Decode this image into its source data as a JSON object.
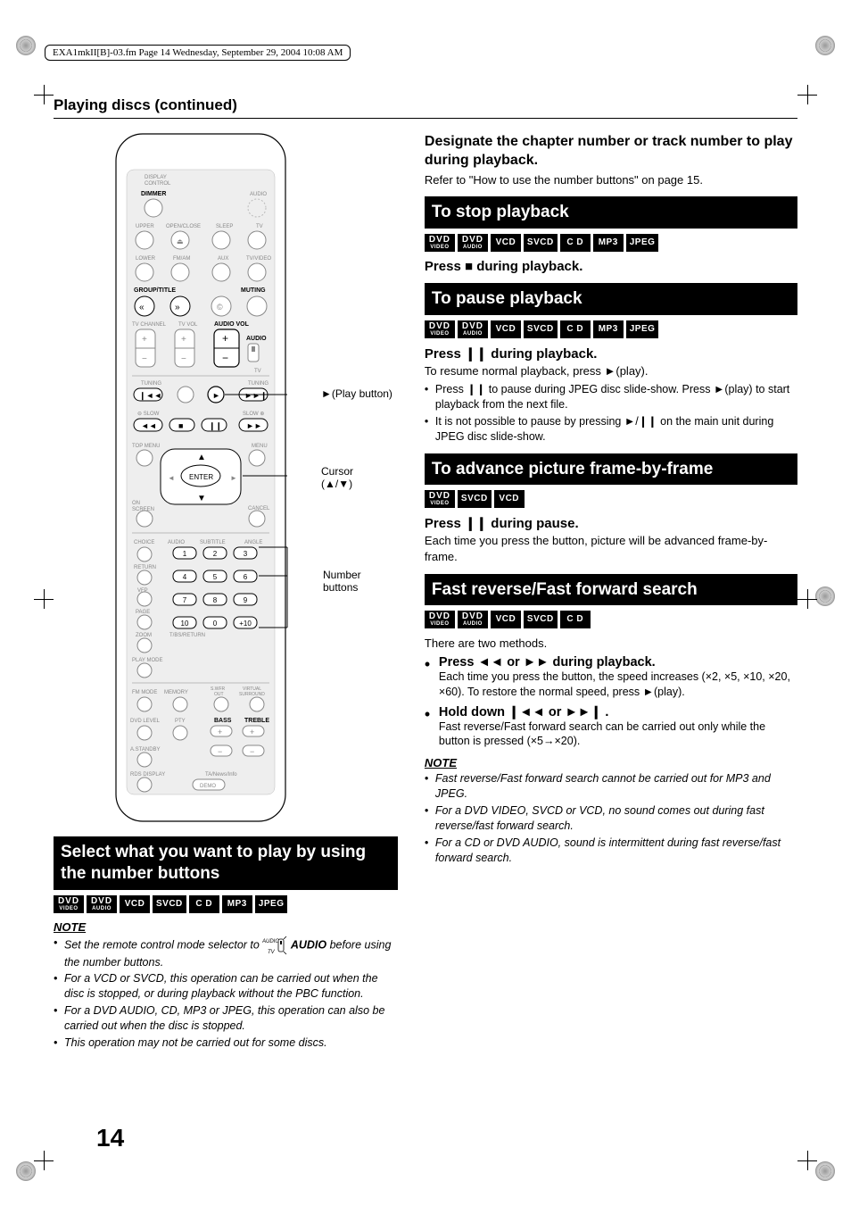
{
  "meta": {
    "fm_header": "EXA1mkII[B]-03.fm  Page 14  Wednesday, September 29, 2004  10:08 AM",
    "page_number": "14"
  },
  "section_title": "Playing discs (continued)",
  "remote": {
    "callout_play": "(Play button)",
    "callout_play_symbol": "►",
    "callout_cursor_l1": "Cursor",
    "callout_cursor_l2": "(▲/▼)",
    "callout_numbers_l1": "Number",
    "callout_numbers_l2": "buttons",
    "labels": {
      "display": "DISPLAY",
      "control": "CONTROL",
      "dimmer": "DIMMER",
      "audio_top": "AUDIO",
      "upper": "UPPER",
      "openclose": "OPEN/CLOSE",
      "sleep": "SLEEP",
      "tv": "TV",
      "lower": "LOWER",
      "fmam": "FM/AM",
      "aux": "AUX",
      "tvvideo": "TV/VIDEO",
      "grouptitle": "GROUP/TITLE",
      "muting": "MUTING",
      "tvchannel": "TV CHANNEL",
      "tvvol": "TV VOL",
      "audiovol": "AUDIO VOL",
      "audio": "AUDIO",
      "tv2": "TV",
      "tuning_l": "TUNING",
      "tuning_r": "TUNING",
      "slow_l": "SLOW",
      "slow_r": "SLOW",
      "topmenu": "TOP MENU",
      "menu": "MENU",
      "enter": "ENTER",
      "onscreen": "ON\nSCREEN",
      "cancel": "CANCEL",
      "choice": "CHOICE",
      "audio2": "AUDIO",
      "subtitle": "SUBTITLE",
      "angle": "ANGLE",
      "return": "RETURN",
      "vfp": "VFP",
      "page": "PAGE",
      "zoom": "ZOOM",
      "tbsreturn": "T/BS/RETURN",
      "playmode": "PLAY MODE",
      "fmmode": "FM MODE",
      "memory": "MEMORY",
      "swfrout": "S.WFR\nOUT",
      "virtual": "VIRTUAL\nSURROUND",
      "dvdlevel": "DVD LEVEL",
      "pty": "PTY",
      "bass": "BASS",
      "treble": "TREBLE",
      "astandby": "A.STANDBY",
      "rdsdisplay": "RDS DISPLAY",
      "tanews": "TA/News/Info",
      "demo": "DEMO",
      "num1": "1",
      "num2": "2",
      "num3": "3",
      "num4": "4",
      "num5": "5",
      "num6": "6",
      "num7": "7",
      "num8": "8",
      "num9": "9",
      "num10": "10",
      "num0": "0",
      "numplus": "+10"
    }
  },
  "left": {
    "heading": "Select what you want to play by using the number buttons",
    "badges": [
      {
        "top": "DVD",
        "bot": "VIDEO"
      },
      {
        "top": "DVD",
        "bot": "AUDIO"
      },
      {
        "single": "VCD"
      },
      {
        "single": "SVCD"
      },
      {
        "single": "C D"
      },
      {
        "single": "MP3"
      },
      {
        "single": "JPEG"
      }
    ],
    "note_title": "NOTE",
    "notes": [
      "Set the remote control mode selector to AUDIO before using the number buttons.",
      "For a VCD or SVCD, this operation can be carried out when the disc is stopped, or during playback without the PBC function.",
      "For a DVD AUDIO, CD, MP3 or JPEG, this operation can also be carried out when the disc is stopped.",
      "This operation may not be carried out for some discs."
    ]
  },
  "right": {
    "sec1": {
      "head": "Designate the chapter number or track number to play during playback.",
      "body": "Refer to \"How to use the number buttons\" on page 15."
    },
    "sec2": {
      "title": "To stop playback",
      "badges": [
        {
          "top": "DVD",
          "bot": "VIDEO"
        },
        {
          "top": "DVD",
          "bot": "AUDIO"
        },
        {
          "single": "VCD"
        },
        {
          "single": "SVCD"
        },
        {
          "single": "C D"
        },
        {
          "single": "MP3"
        },
        {
          "single": "JPEG"
        }
      ],
      "instruct_pre": "Press ",
      "instruct_sym": "■",
      "instruct_post": " during playback."
    },
    "sec3": {
      "title": "To pause playback",
      "badges": [
        {
          "top": "DVD",
          "bot": "VIDEO"
        },
        {
          "top": "DVD",
          "bot": "AUDIO"
        },
        {
          "single": "VCD"
        },
        {
          "single": "SVCD"
        },
        {
          "single": "C D"
        },
        {
          "single": "MP3"
        },
        {
          "single": "JPEG"
        }
      ],
      "instruct_pre": "Press ",
      "instruct_sym": "❙❙",
      "instruct_post": " during playback.",
      "body": "To resume normal playback, press ►(play).",
      "bullets": [
        "Press ❙❙ to pause during JPEG disc slide-show. Press ►(play) to start playback from the next file.",
        "It is not possible to pause by pressing ►/❙❙ on the main unit during JPEG disc slide-show."
      ]
    },
    "sec4": {
      "title": "To advance picture frame-by-frame",
      "badges": [
        {
          "top": "DVD",
          "bot": "VIDEO"
        },
        {
          "single": "SVCD"
        },
        {
          "single": "VCD"
        }
      ],
      "instruct_pre": "Press ",
      "instruct_sym": "❙❙",
      "instruct_post": " during pause.",
      "body": "Each time you press the button, picture will be advanced frame-by-frame."
    },
    "sec5": {
      "title": "Fast reverse/Fast forward search",
      "badges": [
        {
          "top": "DVD",
          "bot": "VIDEO"
        },
        {
          "top": "DVD",
          "bot": "AUDIO"
        },
        {
          "single": "VCD"
        },
        {
          "single": "SVCD"
        },
        {
          "single": "C D"
        }
      ],
      "body": "There are two methods.",
      "methods": [
        {
          "head_pre": "Press ",
          "head_sym": "◄◄ or ►►",
          "head_post": " during playback.",
          "body": "Each time you press the button, the speed increases (×2, ×5, ×10, ×20, ×60). To restore the normal speed, press ►(play)."
        },
        {
          "head_pre": "Hold down ",
          "head_sym": "❙◄◄ or ►►❙",
          "head_post": " .",
          "body": "Fast reverse/Fast forward search can be carried out only while the button is pressed (×5→×20)."
        }
      ],
      "note_title": "NOTE",
      "notes": [
        "Fast reverse/Fast forward search cannot be carried out for MP3 and JPEG.",
        "For a DVD VIDEO, SVCD or VCD, no sound comes out during fast reverse/fast forward search.",
        "For a CD or DVD AUDIO, sound is intermittent during fast reverse/fast forward search."
      ]
    }
  }
}
